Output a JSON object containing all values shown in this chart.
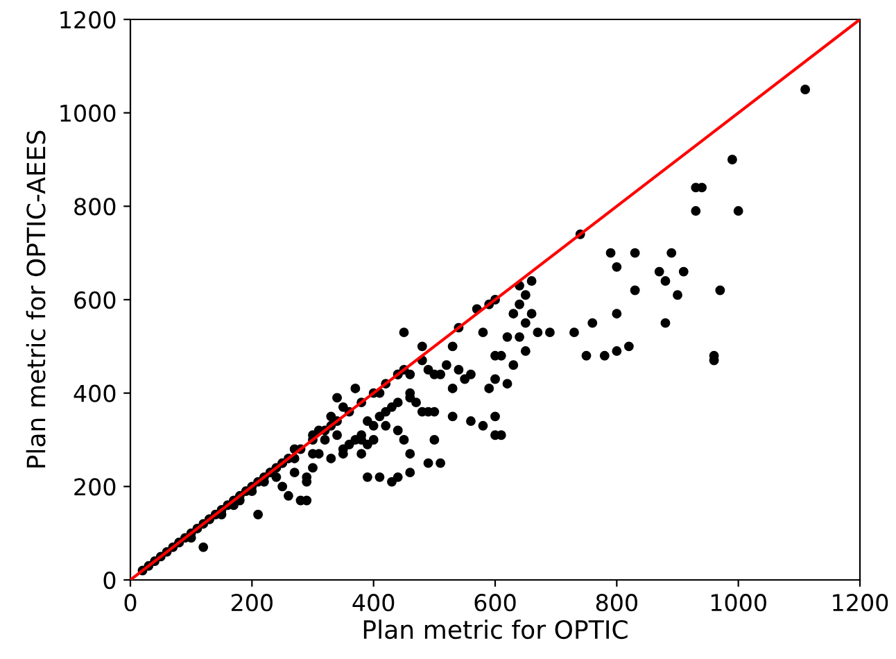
{
  "chart_data": {
    "type": "scatter",
    "xlabel": "Plan metric for OPTIC",
    "ylabel": "Plan metric for OPTIC-AEES",
    "xlim": [
      0,
      1200
    ],
    "ylim": [
      0,
      1200
    ],
    "xticks": [
      0,
      200,
      400,
      600,
      800,
      1000,
      1200
    ],
    "yticks": [
      0,
      200,
      400,
      600,
      800,
      1000,
      1200
    ],
    "grid": false,
    "legend": false,
    "marker": "circle",
    "series": [
      {
        "color": "#000000",
        "x": [
          20,
          30,
          40,
          50,
          60,
          70,
          80,
          90,
          100,
          110,
          120,
          130,
          140,
          150,
          160,
          170,
          180,
          190,
          200,
          210,
          220,
          230,
          240,
          250,
          260,
          280,
          300,
          320,
          340,
          360,
          380,
          400,
          420,
          440,
          450,
          1110,
          990,
          1000,
          930,
          940,
          930,
          970,
          960,
          960,
          910,
          890,
          880,
          900,
          870,
          880,
          830,
          790,
          800,
          830,
          820,
          800,
          780,
          760,
          750,
          800,
          730,
          740,
          690,
          670,
          660,
          650,
          640,
          640,
          660,
          630,
          650,
          640,
          620,
          650,
          630,
          610,
          600,
          620,
          590,
          600,
          600,
          610,
          580,
          600,
          590,
          600,
          570,
          540,
          530,
          520,
          540,
          530,
          560,
          550,
          510,
          500,
          490,
          480,
          480,
          460,
          450,
          440,
          460,
          440,
          420,
          430,
          410,
          420,
          440,
          450,
          460,
          480,
          470,
          460,
          490,
          500,
          500,
          530,
          560,
          580,
          490,
          510,
          460,
          440,
          430,
          410,
          390,
          380,
          390,
          380,
          360,
          350,
          340,
          330,
          320,
          300,
          300,
          290,
          290,
          280,
          290,
          260,
          270,
          250,
          220,
          210,
          170,
          120,
          230,
          240,
          270,
          310,
          330,
          350,
          370,
          380,
          400,
          400,
          390,
          410,
          370,
          350,
          340,
          330,
          310,
          300,
          270,
          250,
          200,
          180,
          150,
          130,
          100,
          80
        ],
        "values": [
          20,
          30,
          40,
          50,
          60,
          70,
          80,
          90,
          100,
          110,
          120,
          130,
          140,
          150,
          160,
          170,
          180,
          190,
          200,
          210,
          220,
          230,
          240,
          250,
          260,
          280,
          300,
          320,
          340,
          360,
          380,
          400,
          420,
          440,
          450,
          1050,
          900,
          790,
          840,
          840,
          790,
          620,
          480,
          470,
          660,
          700,
          640,
          610,
          660,
          550,
          700,
          700,
          670,
          620,
          500,
          490,
          480,
          550,
          480,
          570,
          530,
          740,
          530,
          530,
          640,
          610,
          630,
          590,
          570,
          570,
          550,
          520,
          520,
          490,
          460,
          480,
          430,
          420,
          410,
          350,
          310,
          310,
          530,
          480,
          590,
          600,
          580,
          540,
          500,
          460,
          450,
          410,
          440,
          430,
          440,
          440,
          450,
          500,
          470,
          440,
          530,
          440,
          390,
          380,
          360,
          370,
          400,
          330,
          320,
          300,
          270,
          360,
          380,
          400,
          360,
          360,
          300,
          350,
          340,
          330,
          250,
          250,
          230,
          220,
          210,
          220,
          220,
          270,
          290,
          300,
          290,
          280,
          310,
          330,
          300,
          270,
          240,
          220,
          210,
          170,
          170,
          180,
          230,
          200,
          210,
          140,
          160,
          70,
          230,
          220,
          260,
          270,
          260,
          270,
          300,
          310,
          300,
          330,
          340,
          350,
          410,
          370,
          390,
          350,
          320,
          310,
          280,
          250,
          190,
          170,
          140,
          130,
          90,
          80
        ]
      },
      {
        "type": "line",
        "color": "#ff0000",
        "x": [
          0,
          1200
        ],
        "values": [
          0,
          1200
        ],
        "line_style": "solid",
        "marker": "none"
      }
    ]
  }
}
